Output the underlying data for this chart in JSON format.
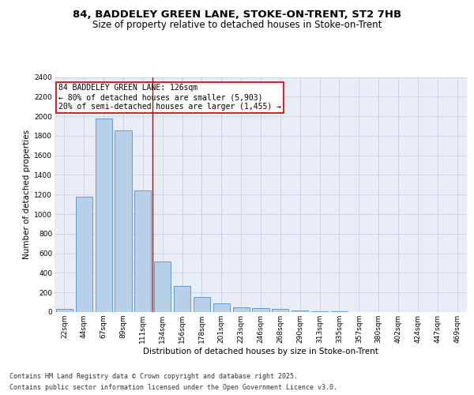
{
  "title_line1": "84, BADDELEY GREEN LANE, STOKE-ON-TRENT, ST2 7HB",
  "title_line2": "Size of property relative to detached houses in Stoke-on-Trent",
  "xlabel": "Distribution of detached houses by size in Stoke-on-Trent",
  "ylabel": "Number of detached properties",
  "bar_labels": [
    "22sqm",
    "44sqm",
    "67sqm",
    "89sqm",
    "111sqm",
    "134sqm",
    "156sqm",
    "178sqm",
    "201sqm",
    "223sqm",
    "246sqm",
    "268sqm",
    "290sqm",
    "313sqm",
    "335sqm",
    "357sqm",
    "380sqm",
    "402sqm",
    "424sqm",
    "447sqm",
    "469sqm"
  ],
  "bar_values": [
    30,
    1175,
    1975,
    1855,
    1240,
    515,
    270,
    155,
    90,
    48,
    42,
    30,
    20,
    12,
    5,
    2,
    2,
    2,
    2,
    2,
    2
  ],
  "bar_color": "#b8cfe8",
  "bar_edgecolor": "#6699cc",
  "vline_x": 4.5,
  "vline_color": "#cc0000",
  "annotation_text": "84 BADDELEY GREEN LANE: 126sqm\n← 80% of detached houses are smaller (5,903)\n20% of semi-detached houses are larger (1,455) →",
  "annotation_box_color": "#cc0000",
  "ylim": [
    0,
    2400
  ],
  "yticks": [
    0,
    200,
    400,
    600,
    800,
    1000,
    1200,
    1400,
    1600,
    1800,
    2000,
    2200,
    2400
  ],
  "grid_color": "#c8d0e0",
  "bg_color": "#e8edf5",
  "footer_line1": "Contains HM Land Registry data © Crown copyright and database right 2025.",
  "footer_line2": "Contains public sector information licensed under the Open Government Licence v3.0.",
  "title_fontsize": 9.5,
  "subtitle_fontsize": 8.5,
  "axis_label_fontsize": 7.5,
  "tick_fontsize": 6.5,
  "annotation_fontsize": 7,
  "footer_fontsize": 6
}
